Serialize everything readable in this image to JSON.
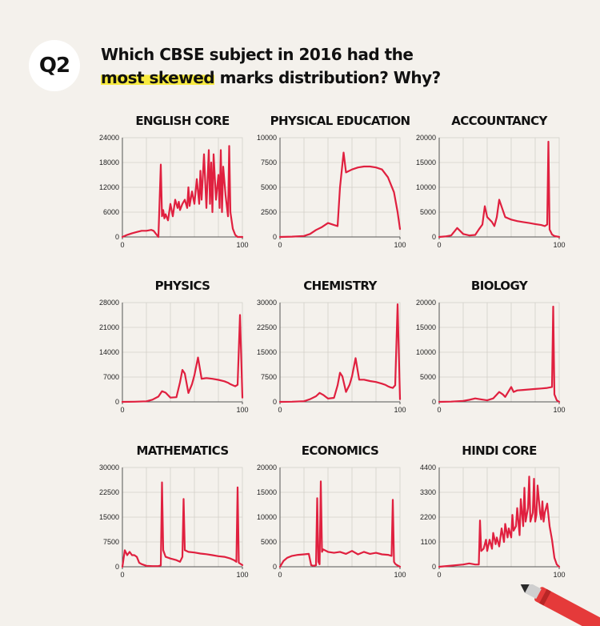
{
  "header": {
    "badge": "Q2",
    "question_part1": "Which CBSE subject in 2016 had the",
    "question_highlight": "most skewed",
    "question_part2": " marks distribution? Why?"
  },
  "colors": {
    "line": "#e0203f",
    "background": "#f4f1ec",
    "highlight": "#f7ea3f"
  },
  "chart_data": [
    {
      "type": "line",
      "title": "ENGLISH CORE",
      "x_ticks": [
        0,
        100
      ],
      "y_ticks": [
        0,
        6000,
        12000,
        18000,
        24000
      ],
      "xlim": [
        0,
        100
      ],
      "ylim": [
        0,
        24000
      ],
      "x": [
        0,
        4,
        8,
        12,
        16,
        20,
        24,
        26,
        30,
        32,
        33,
        34,
        35,
        36,
        38,
        40,
        42,
        44,
        46,
        47,
        48,
        50,
        52,
        54,
        55,
        56,
        58,
        60,
        62,
        64,
        65,
        66,
        68,
        70,
        72,
        73,
        74,
        75,
        76,
        78,
        80,
        81,
        82,
        83,
        84,
        86,
        88,
        89,
        90,
        92,
        94,
        96,
        98,
        100
      ],
      "y": [
        0,
        500,
        900,
        1200,
        1500,
        1500,
        1700,
        1500,
        0,
        17500,
        5000,
        6500,
        4500,
        5500,
        4000,
        8000,
        5000,
        9000,
        7000,
        8500,
        6500,
        8000,
        9000,
        7000,
        12000,
        7500,
        11000,
        8000,
        14000,
        8000,
        16000,
        9000,
        20000,
        7000,
        21000,
        8000,
        18000,
        6000,
        20000,
        9000,
        15000,
        7000,
        21000,
        6000,
        17000,
        10000,
        5000,
        22000,
        6000,
        2000,
        500,
        0,
        0,
        0
      ]
    },
    {
      "type": "line",
      "title": "PHYSICAL EDUCATION",
      "x_ticks": [
        0,
        100
      ],
      "y_ticks": [
        0,
        2500,
        5000,
        7500,
        10000
      ],
      "xlim": [
        0,
        100
      ],
      "ylim": [
        0,
        10000
      ],
      "x": [
        0,
        10,
        20,
        25,
        30,
        35,
        40,
        45,
        48,
        50,
        53,
        55,
        60,
        65,
        70,
        75,
        80,
        85,
        90,
        95,
        98,
        100
      ],
      "y": [
        0,
        30,
        100,
        300,
        700,
        1000,
        1400,
        1200,
        1100,
        5000,
        8500,
        6500,
        6800,
        7000,
        7100,
        7100,
        7000,
        6800,
        6000,
        4500,
        2500,
        800
      ]
    },
    {
      "type": "line",
      "title": "ACCOUNTANCY",
      "x_ticks": [
        0,
        100
      ],
      "y_ticks": [
        0,
        5000,
        10000,
        15000,
        20000
      ],
      "xlim": [
        0,
        100
      ],
      "ylim": [
        0,
        20000
      ],
      "x": [
        0,
        5,
        10,
        15,
        20,
        25,
        30,
        33,
        36,
        38,
        40,
        44,
        46,
        48,
        50,
        55,
        60,
        65,
        70,
        75,
        80,
        85,
        88,
        90,
        91,
        92,
        94,
        96,
        100
      ],
      "y": [
        0,
        100,
        300,
        1800,
        600,
        300,
        400,
        1500,
        2500,
        6200,
        4000,
        3000,
        2200,
        4000,
        7500,
        4000,
        3500,
        3200,
        3000,
        2800,
        2600,
        2400,
        2200,
        2500,
        19200,
        1500,
        500,
        200,
        0
      ]
    },
    {
      "type": "line",
      "title": "PHYSICS",
      "x_ticks": [
        0,
        100
      ],
      "y_ticks": [
        0,
        7000,
        14000,
        21000,
        28000
      ],
      "xlim": [
        0,
        100
      ],
      "ylim": [
        0,
        28000
      ],
      "x": [
        0,
        10,
        20,
        25,
        30,
        33,
        36,
        40,
        45,
        48,
        50,
        52,
        55,
        58,
        60,
        63,
        66,
        70,
        75,
        80,
        85,
        88,
        90,
        92,
        94,
        96,
        98,
        100
      ],
      "y": [
        0,
        50,
        150,
        600,
        1500,
        3000,
        2600,
        1200,
        1300,
        5500,
        9000,
        8000,
        2500,
        5000,
        7500,
        12500,
        6500,
        6700,
        6500,
        6200,
        5800,
        5400,
        5000,
        4700,
        4400,
        4800,
        24500,
        1200
      ]
    },
    {
      "type": "line",
      "title": "CHEMISTRY",
      "x_ticks": [
        0,
        100
      ],
      "y_ticks": [
        0,
        7500,
        15000,
        22500,
        30000
      ],
      "xlim": [
        0,
        100
      ],
      "ylim": [
        0,
        30000
      ],
      "x": [
        0,
        10,
        20,
        25,
        30,
        33,
        36,
        40,
        45,
        48,
        50,
        52,
        55,
        58,
        60,
        63,
        66,
        70,
        75,
        80,
        85,
        88,
        90,
        92,
        94,
        96,
        98,
        100
      ],
      "y": [
        0,
        50,
        200,
        800,
        1700,
        2700,
        2100,
        1000,
        1200,
        5000,
        8800,
        7700,
        3000,
        5200,
        7700,
        13200,
        6700,
        6700,
        6300,
        6000,
        5500,
        5100,
        4700,
        4400,
        4200,
        5000,
        29500,
        800
      ]
    },
    {
      "type": "line",
      "title": "BIOLOGY",
      "x_ticks": [
        0,
        100
      ],
      "y_ticks": [
        0,
        5000,
        10000,
        15000,
        20000
      ],
      "xlim": [
        0,
        100
      ],
      "ylim": [
        0,
        20000
      ],
      "x": [
        0,
        10,
        20,
        25,
        30,
        35,
        40,
        45,
        50,
        53,
        55,
        60,
        62,
        65,
        70,
        75,
        80,
        85,
        90,
        94,
        95,
        96,
        98,
        100
      ],
      "y": [
        0,
        50,
        200,
        400,
        700,
        500,
        300,
        700,
        2000,
        1500,
        1000,
        3000,
        2000,
        2300,
        2400,
        2500,
        2600,
        2700,
        2800,
        3000,
        19200,
        1500,
        300,
        0
      ]
    },
    {
      "type": "line",
      "title": "MATHEMATICS",
      "x_ticks": [
        0,
        100
      ],
      "y_ticks": [
        0,
        7500,
        15000,
        22500,
        30000
      ],
      "xlim": [
        0,
        100
      ],
      "ylim": [
        0,
        30000
      ],
      "x": [
        0,
        2,
        4,
        6,
        8,
        10,
        12,
        14,
        16,
        20,
        25,
        30,
        32,
        33,
        34,
        36,
        40,
        45,
        48,
        50,
        51,
        52,
        55,
        60,
        65,
        70,
        75,
        80,
        85,
        90,
        93,
        95,
        96,
        97,
        100
      ],
      "y": [
        0,
        5000,
        3500,
        4500,
        3500,
        3500,
        3000,
        1200,
        800,
        300,
        200,
        200,
        400,
        25500,
        5000,
        3000,
        2500,
        2000,
        1500,
        3000,
        20500,
        5000,
        4500,
        4300,
        4000,
        3800,
        3500,
        3200,
        3000,
        2500,
        2000,
        1500,
        24000,
        1200,
        500
      ]
    },
    {
      "type": "line",
      "title": "ECONOMICS",
      "x_ticks": [
        0,
        100
      ],
      "y_ticks": [
        0,
        5000,
        10000,
        15000,
        20000
      ],
      "xlim": [
        0,
        100
      ],
      "ylim": [
        0,
        20000
      ],
      "x": [
        0,
        3,
        6,
        10,
        15,
        20,
        24,
        26,
        28,
        30,
        31,
        32,
        33,
        34,
        35,
        36,
        40,
        45,
        50,
        55,
        60,
        65,
        70,
        75,
        80,
        85,
        90,
        93,
        94,
        95,
        96,
        97,
        100
      ],
      "y": [
        0,
        1200,
        1800,
        2200,
        2400,
        2500,
        2600,
        300,
        200,
        300,
        13800,
        1000,
        500,
        17200,
        3000,
        3500,
        3000,
        2800,
        3000,
        2600,
        3200,
        2500,
        3000,
        2600,
        2800,
        2500,
        2400,
        2200,
        13500,
        1000,
        600,
        400,
        0
      ]
    },
    {
      "type": "line",
      "title": "HINDI CORE",
      "x_ticks": [
        0,
        100
      ],
      "y_ticks": [
        0,
        1100,
        2200,
        3300,
        4400
      ],
      "xlim": [
        0,
        100
      ],
      "ylim": [
        0,
        4400
      ],
      "x": [
        0,
        10,
        20,
        25,
        30,
        33,
        34,
        35,
        37,
        39,
        40,
        42,
        44,
        45,
        47,
        48,
        50,
        52,
        54,
        55,
        57,
        58,
        60,
        61,
        62,
        64,
        65,
        67,
        68,
        70,
        71,
        72,
        74,
        75,
        76,
        78,
        79,
        80,
        81,
        82,
        84,
        85,
        86,
        87,
        88,
        90,
        92,
        94,
        96,
        98,
        100
      ],
      "y": [
        0,
        50,
        100,
        150,
        100,
        100,
        2050,
        700,
        800,
        1200,
        700,
        1200,
        800,
        1500,
        1000,
        1300,
        900,
        1700,
        1100,
        1900,
        1300,
        1700,
        1300,
        2300,
        1600,
        1800,
        2600,
        1400,
        3000,
        1800,
        3500,
        2000,
        2600,
        4000,
        2000,
        2400,
        3900,
        2000,
        2300,
        3600,
        2400,
        2100,
        2900,
        2000,
        2400,
        2800,
        1800,
        1200,
        400,
        100,
        0
      ]
    }
  ]
}
